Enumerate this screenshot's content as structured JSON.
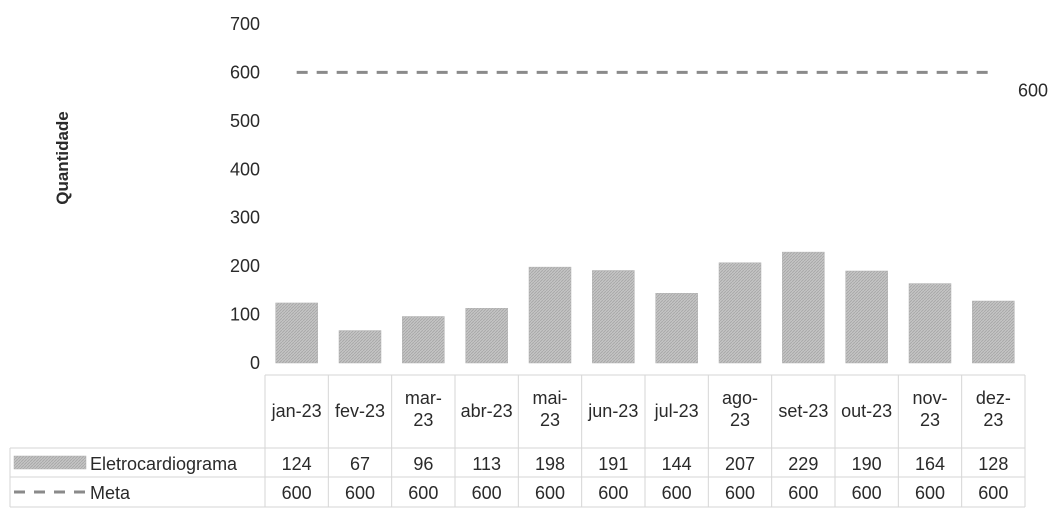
{
  "chart_data": {
    "type": "bar",
    "title": "",
    "xlabel": "",
    "ylabel": "Quantidade",
    "ylim": [
      0,
      700
    ],
    "yticks": [
      0,
      100,
      200,
      300,
      400,
      500,
      600,
      700
    ],
    "categories": [
      "jan-23",
      "fev-23",
      "mar-23",
      "abr-23",
      "mai-23",
      "jun-23",
      "jul-23",
      "ago-23",
      "set-23",
      "out-23",
      "nov-23",
      "dez-23"
    ],
    "series": [
      {
        "name": "Eletrocardiograma",
        "kind": "bar",
        "color": "#b8b8b8",
        "values": [
          124,
          67,
          96,
          113,
          198,
          191,
          144,
          207,
          229,
          190,
          164,
          128
        ]
      },
      {
        "name": "Meta",
        "kind": "line",
        "style": "dashed",
        "color": "#8a8a8a",
        "values": [
          600,
          600,
          600,
          600,
          600,
          600,
          600,
          600,
          600,
          600,
          600,
          600
        ]
      }
    ],
    "line_end_label": "600",
    "legend": "data-table below chart",
    "grid": false
  }
}
